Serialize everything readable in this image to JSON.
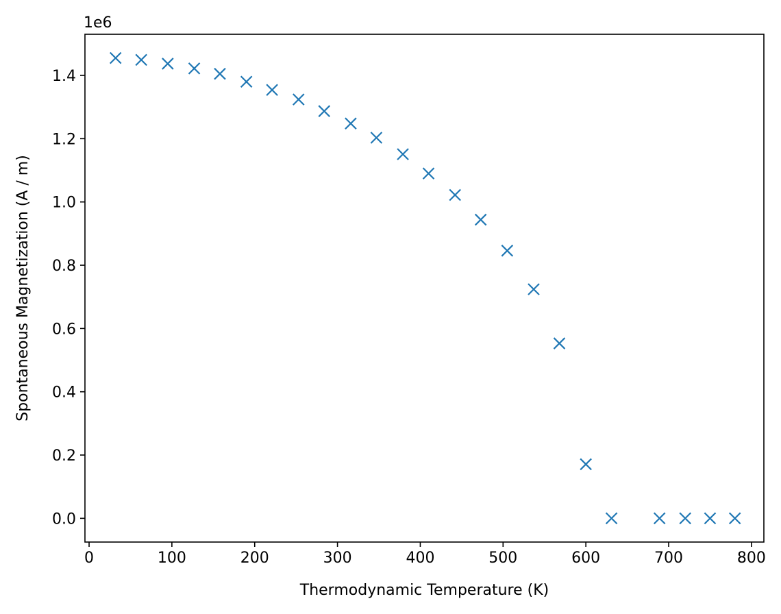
{
  "chart_data": {
    "type": "scatter",
    "title": "",
    "xlabel": "Thermodynamic Temperature (K)",
    "ylabel": "Spontaneous Magnetization (A / m)",
    "y_offset_label": "1e6",
    "xlim": [
      -5,
      815
    ],
    "ylim": [
      -0.075,
      1.53
    ],
    "x_ticks": [
      0,
      100,
      200,
      300,
      400,
      500,
      600,
      700,
      800
    ],
    "x_tick_labels": [
      "0",
      "100",
      "200",
      "300",
      "400",
      "500",
      "600",
      "700",
      "800"
    ],
    "y_ticks": [
      0.0,
      0.2,
      0.4,
      0.6,
      0.8,
      1.0,
      1.2,
      1.4
    ],
    "y_tick_labels": [
      "0.0",
      "0.2",
      "0.4",
      "0.6",
      "0.8",
      "1.0",
      "1.2",
      "1.4"
    ],
    "marker": "x",
    "color": "#1f77b4",
    "series": [
      {
        "name": "Spontaneous Magnetization",
        "x": [
          32,
          63,
          95,
          127,
          158,
          190,
          221,
          253,
          284,
          316,
          347,
          379,
          410,
          442,
          473,
          505,
          537,
          568,
          600,
          631,
          689,
          720,
          750,
          780
        ],
        "y": [
          1.455,
          1.449,
          1.437,
          1.422,
          1.405,
          1.38,
          1.354,
          1.324,
          1.287,
          1.248,
          1.203,
          1.151,
          1.09,
          1.022,
          0.944,
          0.846,
          0.724,
          0.553,
          0.171,
          0.0,
          0.0,
          0.0,
          0.0,
          0.0
        ]
      }
    ]
  }
}
